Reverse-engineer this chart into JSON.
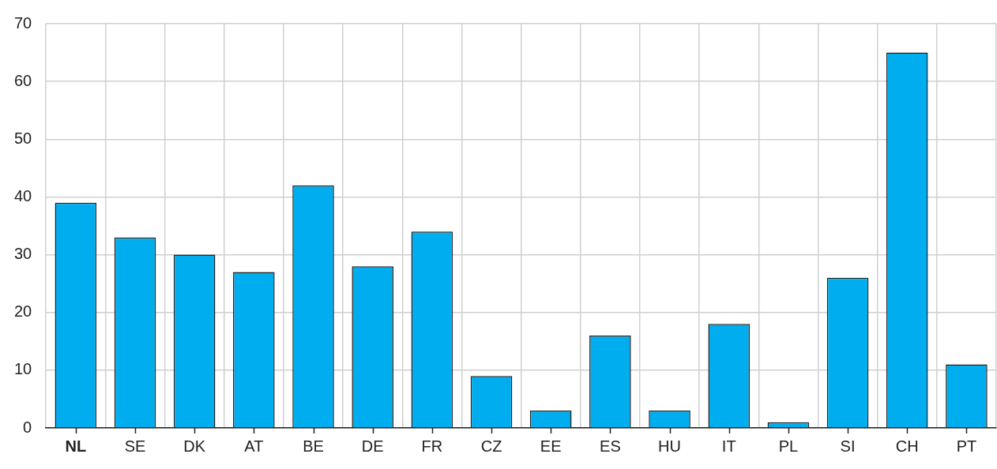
{
  "chart_data": {
    "type": "bar",
    "categories": [
      "NL",
      "SE",
      "DK",
      "AT",
      "BE",
      "DE",
      "FR",
      "CZ",
      "EE",
      "ES",
      "HU",
      "IT",
      "PL",
      "SI",
      "CH",
      "PT"
    ],
    "values": [
      39,
      33,
      30,
      27,
      42,
      28,
      34,
      9,
      3,
      16,
      3,
      18,
      1,
      26,
      65,
      11
    ],
    "color": "#00aeef",
    "ylim": [
      0,
      70
    ],
    "yticks": [
      0,
      10,
      20,
      30,
      40,
      50,
      60,
      70
    ],
    "grid": true,
    "legend": false
  }
}
